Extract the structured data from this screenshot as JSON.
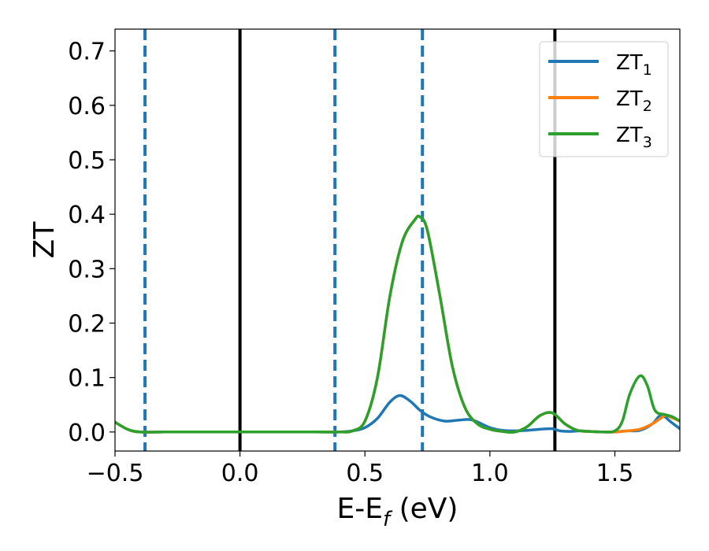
{
  "chart_data": {
    "type": "line",
    "title": "",
    "xlabel": {
      "base": "E-E",
      "sub": "f",
      "tail": " (eV)"
    },
    "ylabel": "ZT",
    "xlim": [
      -0.5,
      1.76
    ],
    "ylim": [
      -0.035,
      0.74
    ],
    "x_ticks": [
      -0.5,
      0.0,
      0.5,
      1.0,
      1.5
    ],
    "x_tick_labels": [
      "−0.5",
      "0.0",
      "0.5",
      "1.0",
      "1.5"
    ],
    "y_ticks": [
      0.0,
      0.1,
      0.2,
      0.3,
      0.4,
      0.5,
      0.6,
      0.7
    ],
    "y_tick_labels": [
      "0.0",
      "0.1",
      "0.2",
      "0.3",
      "0.4",
      "0.5",
      "0.6",
      "0.7"
    ],
    "grid": false,
    "legend_position": "top-right",
    "vlines": [
      {
        "x": -0.38,
        "style": "dashed",
        "color": "#1f77b4"
      },
      {
        "x": 0.0,
        "style": "solid",
        "color": "#000000"
      },
      {
        "x": 0.38,
        "style": "dashed",
        "color": "#1f77b4"
      },
      {
        "x": 0.73,
        "style": "dashed",
        "color": "#1f77b4"
      },
      {
        "x": 1.26,
        "style": "solid",
        "color": "#000000"
      }
    ],
    "series": [
      {
        "name": "ZT",
        "sub": "1",
        "color": "#1f77b4",
        "x": [
          -0.5,
          -0.45,
          -0.4,
          -0.3,
          0.0,
          0.3,
          0.4,
          0.45,
          0.5,
          0.55,
          0.6,
          0.64,
          0.68,
          0.72,
          0.76,
          0.82,
          0.88,
          0.93,
          1.0,
          1.05,
          1.1,
          1.15,
          1.2,
          1.25,
          1.28,
          1.32,
          1.36,
          1.4,
          1.45,
          1.5,
          1.55,
          1.6,
          1.65,
          1.68,
          1.7,
          1.72,
          1.76
        ],
        "y": [
          0.018,
          0.005,
          0.0,
          0.0,
          0.0,
          0.0,
          0.0,
          0.002,
          0.008,
          0.025,
          0.055,
          0.067,
          0.057,
          0.04,
          0.028,
          0.02,
          0.022,
          0.022,
          0.008,
          0.003,
          0.002,
          0.003,
          0.005,
          0.006,
          0.002,
          0.001,
          0.002,
          0.001,
          0.0,
          0.0,
          0.002,
          0.003,
          0.015,
          0.03,
          0.028,
          0.02,
          0.006
        ]
      },
      {
        "name": "ZT",
        "sub": "2",
        "color": "#ff7f0e",
        "x": [
          -0.5,
          -0.45,
          -0.4,
          -0.3,
          0.0,
          0.3,
          0.4,
          0.45,
          0.5,
          0.55,
          0.6,
          0.65,
          0.7,
          0.72,
          0.75,
          0.8,
          0.85,
          0.9,
          0.95,
          1.0,
          1.05,
          1.1,
          1.15,
          1.2,
          1.25,
          1.3,
          1.35,
          1.4,
          1.45,
          1.5,
          1.55,
          1.6,
          1.65,
          1.7,
          1.72,
          1.76
        ],
        "y": [
          0.018,
          0.005,
          0.0,
          0.0,
          0.0,
          0.0,
          0.0,
          0.002,
          0.02,
          0.1,
          0.25,
          0.35,
          0.39,
          0.395,
          0.37,
          0.25,
          0.12,
          0.045,
          0.015,
          0.005,
          0.001,
          0.0,
          0.01,
          0.03,
          0.035,
          0.015,
          0.003,
          0.001,
          0.0,
          0.0,
          0.002,
          0.005,
          0.015,
          0.03,
          0.028,
          0.02
        ]
      },
      {
        "name": "ZT",
        "sub": "3",
        "color": "#2ca02c",
        "x": [
          -0.5,
          -0.45,
          -0.4,
          -0.3,
          0.0,
          0.3,
          0.4,
          0.45,
          0.5,
          0.55,
          0.6,
          0.65,
          0.7,
          0.72,
          0.75,
          0.8,
          0.85,
          0.9,
          0.95,
          1.0,
          1.05,
          1.1,
          1.15,
          1.2,
          1.25,
          1.3,
          1.35,
          1.4,
          1.45,
          1.5,
          1.53,
          1.56,
          1.6,
          1.63,
          1.66,
          1.7,
          1.73,
          1.76
        ],
        "y": [
          0.018,
          0.005,
          0.0,
          0.0,
          0.0,
          0.0,
          0.0,
          0.002,
          0.02,
          0.1,
          0.25,
          0.35,
          0.39,
          0.395,
          0.37,
          0.25,
          0.12,
          0.045,
          0.015,
          0.005,
          0.001,
          0.0,
          0.01,
          0.03,
          0.035,
          0.015,
          0.003,
          0.001,
          0.0,
          0.002,
          0.02,
          0.07,
          0.103,
          0.085,
          0.04,
          0.032,
          0.028,
          0.02
        ]
      }
    ]
  }
}
